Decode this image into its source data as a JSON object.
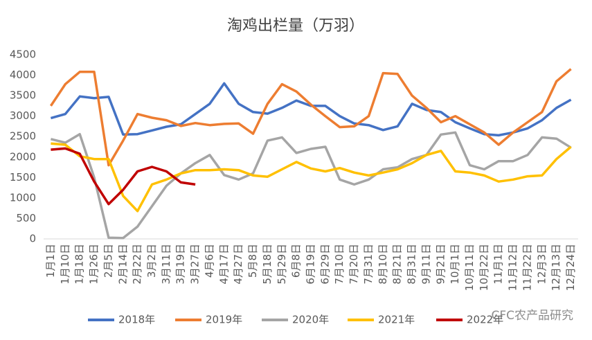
{
  "chart_data": {
    "type": "line",
    "title": "淘鸡出栏量（万羽）",
    "categories": [
      "1月1日",
      "1月10日",
      "1月18日",
      "1月26日",
      "2月5日",
      "2月14日",
      "2月22日",
      "3月2日",
      "3月11日",
      "3月19日",
      "3月27日",
      "4月6日",
      "4月17日",
      "4月27日",
      "5月8日",
      "5月18日",
      "5月29日",
      "6月8日",
      "6月19日",
      "6月29日",
      "7月10日",
      "7月20日",
      "7月31日",
      "8月10日",
      "8月21日",
      "8月31日",
      "9月11日",
      "9月21日",
      "10月1日",
      "10月11日",
      "10月22日",
      "11月1日",
      "11月12日",
      "11月22日",
      "12月3日",
      "12月13日",
      "12月24日"
    ],
    "series": [
      {
        "name": "2018年",
        "color": "#4472c4",
        "values": [
          2950,
          3050,
          3480,
          3440,
          3470,
          2550,
          2560,
          2650,
          2740,
          2800,
          3050,
          3300,
          3800,
          3300,
          3100,
          3060,
          3200,
          3380,
          3250,
          3250,
          3000,
          2820,
          2780,
          2660,
          2750,
          3300,
          3150,
          3100,
          2850,
          2700,
          2560,
          2530,
          2600,
          2700,
          2900,
          3200,
          3400
        ]
      },
      {
        "name": "2019年",
        "color": "#ed7d31",
        "values": [
          3250,
          3780,
          4080,
          4080,
          1800,
          2400,
          3050,
          2960,
          2900,
          2760,
          2830,
          2780,
          2810,
          2820,
          2570,
          3300,
          3780,
          3600,
          3280,
          3000,
          2730,
          2750,
          3000,
          4050,
          4030,
          3500,
          3200,
          2850,
          3000,
          2800,
          2600,
          2300,
          2600,
          2850,
          3100,
          3850,
          4150
        ]
      },
      {
        "name": "2020年",
        "color": "#a5a5a5",
        "values": [
          2440,
          2350,
          2560,
          1500,
          30,
          20,
          300,
          800,
          1300,
          1600,
          1850,
          2050,
          1560,
          1450,
          1600,
          2400,
          2480,
          2100,
          2200,
          2250,
          1450,
          1330,
          1450,
          1700,
          1750,
          1950,
          2050,
          2550,
          2600,
          1800,
          1700,
          1900,
          1900,
          2050,
          2480,
          2450,
          2230
        ]
      },
      {
        "name": "2021年",
        "color": "#ffc000",
        "values": [
          2330,
          2300,
          2020,
          1950,
          1950,
          1050,
          680,
          1330,
          1450,
          1600,
          1680,
          1680,
          1700,
          1680,
          1550,
          1520,
          1700,
          1880,
          1720,
          1650,
          1730,
          1620,
          1550,
          1620,
          1700,
          1850,
          2050,
          2150,
          1650,
          1620,
          1550,
          1400,
          1450,
          1530,
          1550,
          1950,
          2250
        ]
      },
      {
        "name": "2022年",
        "color": "#c00000",
        "values": [
          2180,
          2210,
          2080,
          1400,
          850,
          1200,
          1650,
          1760,
          1650,
          1380,
          1330,
          null,
          null,
          null,
          null,
          null,
          null,
          null,
          null,
          null,
          null,
          null,
          null,
          null,
          null,
          null,
          null,
          null,
          null,
          null,
          null,
          null,
          null,
          null,
          null,
          null,
          null
        ]
      }
    ],
    "ylim": [
      0,
      4500
    ],
    "yticks": [
      0,
      500,
      1000,
      1500,
      2000,
      2500,
      3000,
      3500,
      4000,
      4500
    ],
    "grid": false,
    "legend": "bottom",
    "watermark": "CFC农产品研究"
  }
}
